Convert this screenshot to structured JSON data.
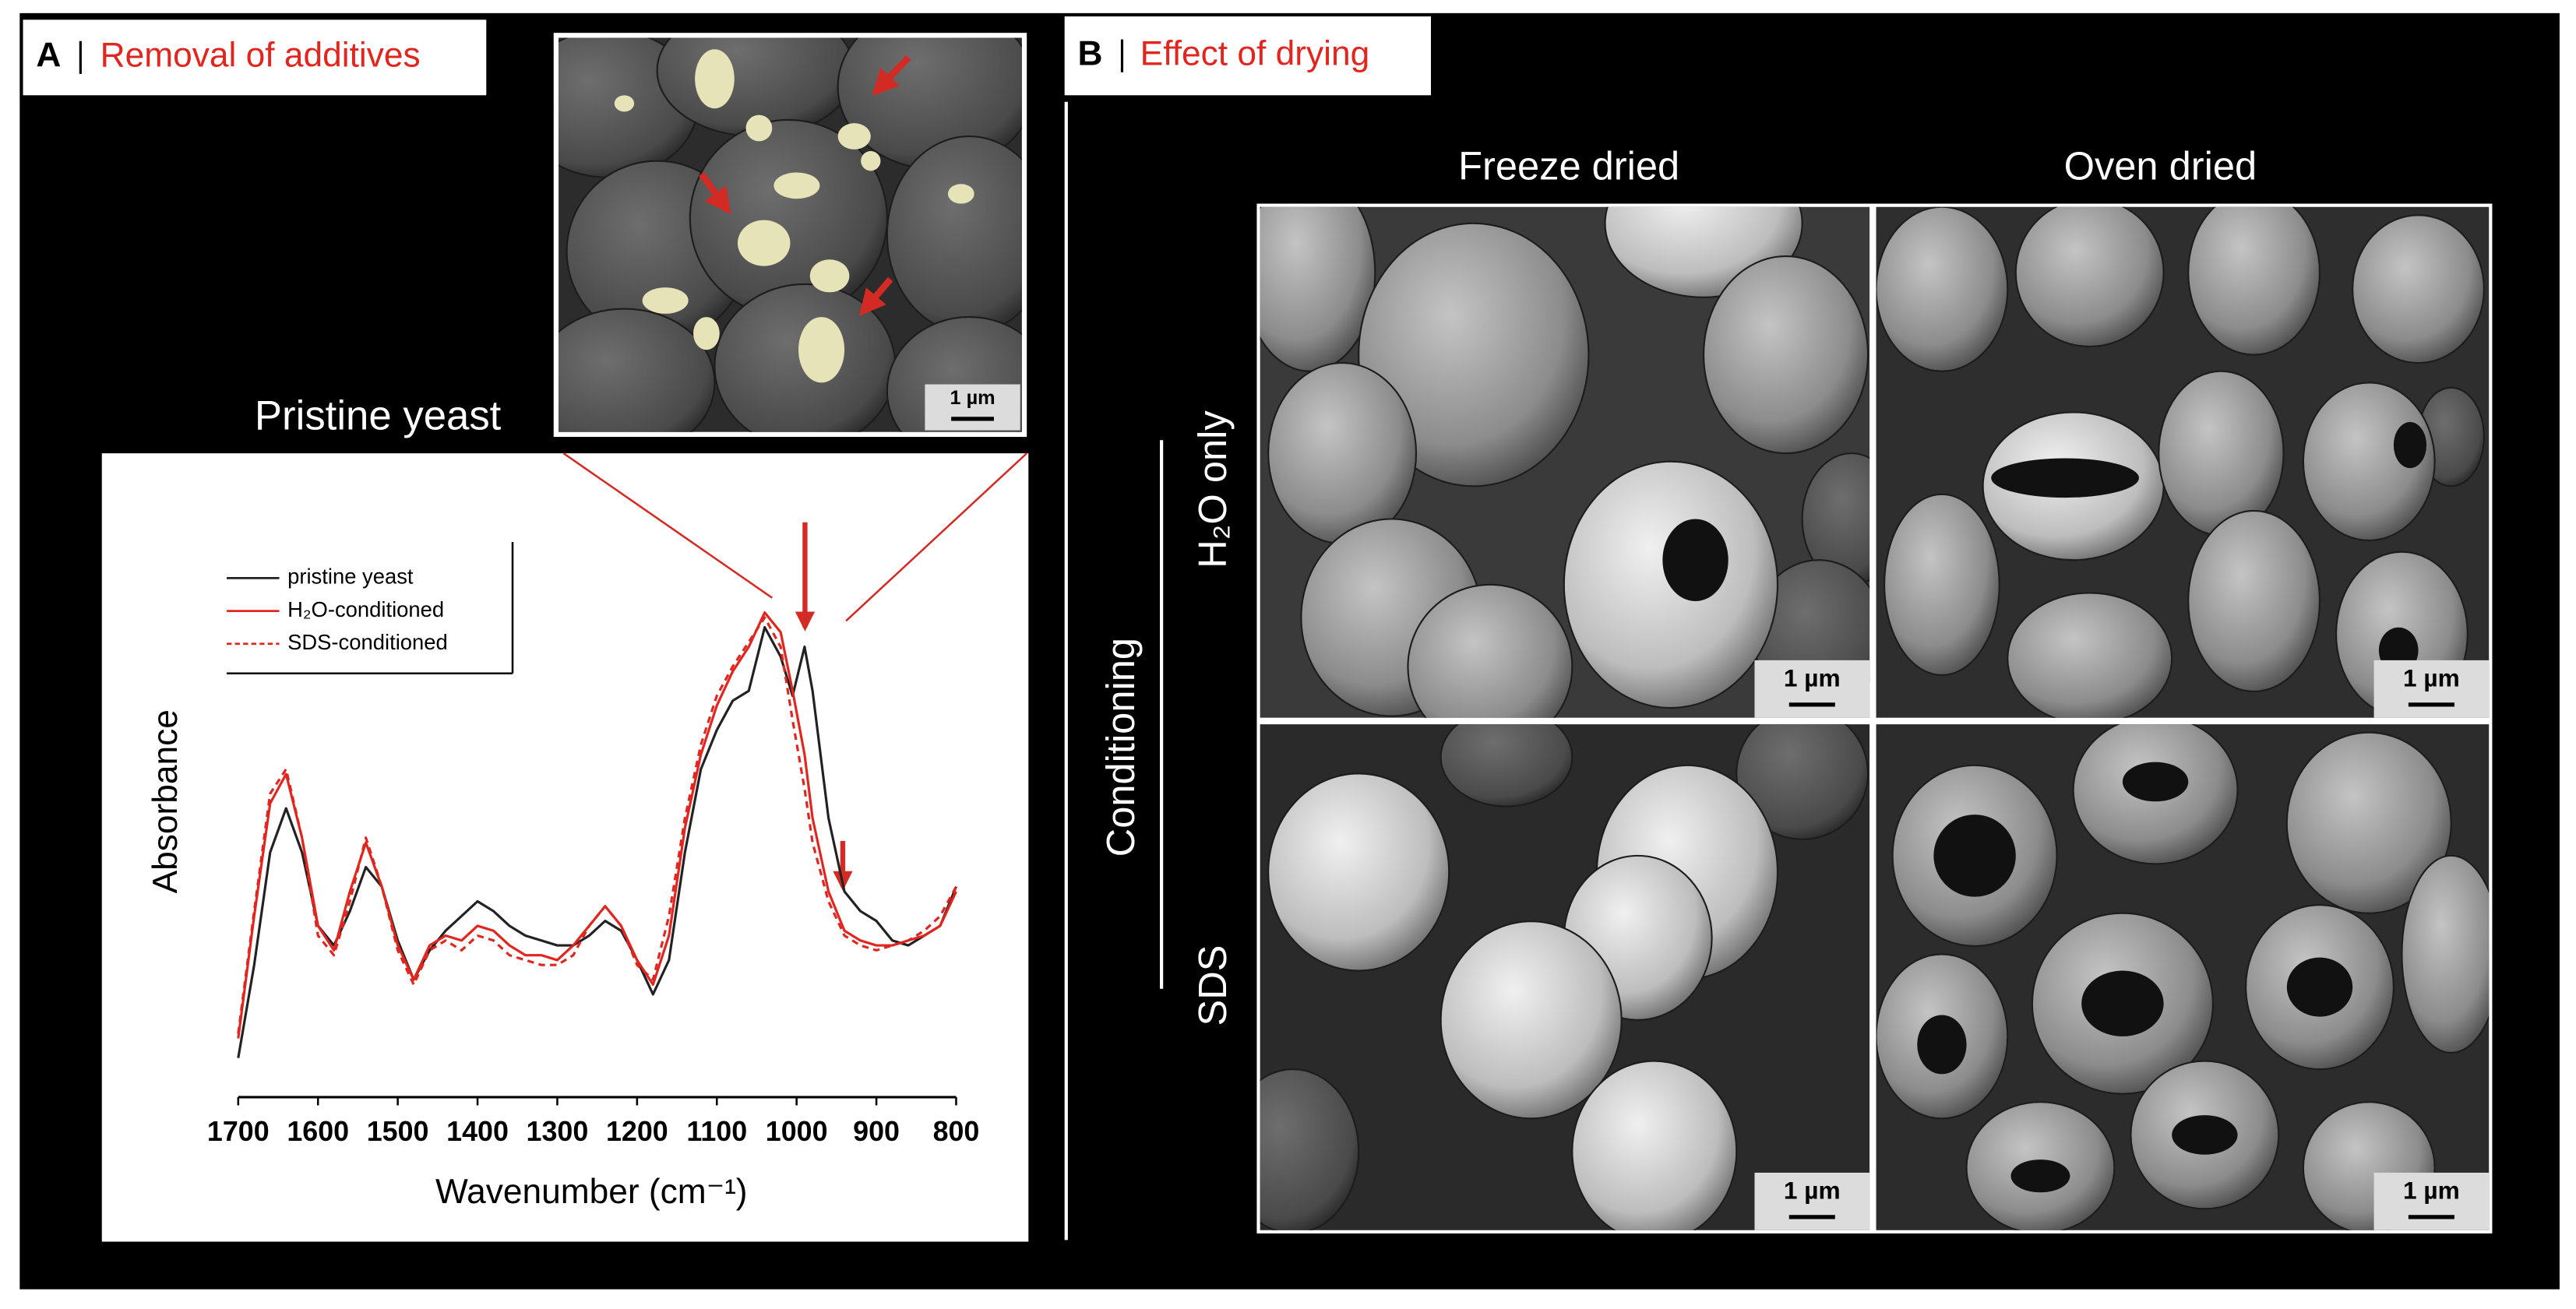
{
  "panel_a": {
    "letter": "A",
    "title": "Removal of additives",
    "inset_label": "Pristine yeast",
    "scale_bar": "1 µm"
  },
  "chart_data": {
    "type": "line",
    "x_label": "Wavenumber (cm⁻¹)",
    "y_label": "Absorbance",
    "x": [
      1700,
      1680,
      1660,
      1640,
      1620,
      1600,
      1580,
      1560,
      1540,
      1520,
      1500,
      1480,
      1460,
      1440,
      1420,
      1400,
      1380,
      1360,
      1340,
      1320,
      1300,
      1280,
      1260,
      1240,
      1220,
      1200,
      1180,
      1160,
      1140,
      1120,
      1100,
      1080,
      1060,
      1040,
      1020,
      1005,
      990,
      980,
      960,
      940,
      920,
      900,
      880,
      860,
      840,
      820,
      800
    ],
    "xlim": [
      1700,
      800
    ],
    "xticks": [
      1700,
      1600,
      1500,
      1400,
      1300,
      1200,
      1100,
      1000,
      900,
      800
    ],
    "ylim": [
      0,
      1
    ],
    "legend": "upper left",
    "series": [
      {
        "name": "pristine yeast",
        "color": "#222222",
        "style": "solid",
        "values": [
          0.08,
          0.27,
          0.5,
          0.59,
          0.5,
          0.35,
          0.31,
          0.38,
          0.47,
          0.43,
          0.32,
          0.24,
          0.3,
          0.34,
          0.37,
          0.4,
          0.38,
          0.35,
          0.33,
          0.32,
          0.31,
          0.31,
          0.33,
          0.36,
          0.34,
          0.28,
          0.21,
          0.28,
          0.5,
          0.67,
          0.75,
          0.81,
          0.83,
          0.96,
          0.9,
          0.82,
          0.92,
          0.83,
          0.57,
          0.42,
          0.38,
          0.36,
          0.32,
          0.31,
          0.33,
          0.35,
          0.43
        ]
      },
      {
        "name": "H₂O-conditioned",
        "color": "#e0261f",
        "style": "solid",
        "values": [
          0.12,
          0.37,
          0.6,
          0.66,
          0.53,
          0.35,
          0.3,
          0.42,
          0.52,
          0.43,
          0.31,
          0.24,
          0.31,
          0.33,
          0.32,
          0.35,
          0.34,
          0.31,
          0.29,
          0.29,
          0.28,
          0.31,
          0.35,
          0.39,
          0.35,
          0.28,
          0.23,
          0.33,
          0.55,
          0.7,
          0.8,
          0.87,
          0.92,
          0.99,
          0.95,
          0.83,
          0.7,
          0.57,
          0.42,
          0.34,
          0.32,
          0.31,
          0.31,
          0.32,
          0.33,
          0.35,
          0.42
        ]
      },
      {
        "name": "SDS-conditioned",
        "color": "#e0261f",
        "style": "dashed",
        "values": [
          0.13,
          0.38,
          0.62,
          0.67,
          0.53,
          0.33,
          0.29,
          0.4,
          0.53,
          0.43,
          0.3,
          0.23,
          0.3,
          0.32,
          0.3,
          0.33,
          0.32,
          0.29,
          0.28,
          0.27,
          0.27,
          0.29,
          0.35,
          0.39,
          0.35,
          0.27,
          0.24,
          0.37,
          0.57,
          0.72,
          0.82,
          0.88,
          0.93,
          0.98,
          0.92,
          0.77,
          0.63,
          0.52,
          0.4,
          0.33,
          0.31,
          0.3,
          0.31,
          0.32,
          0.34,
          0.37,
          0.43
        ]
      }
    ]
  },
  "panel_b": {
    "letter": "B",
    "title": "Effect of drying",
    "columns": [
      "Freeze dried",
      "Oven dried"
    ],
    "group_label": "Conditioning",
    "rows": [
      "H₂O only",
      "SDS"
    ],
    "scale_bars": [
      "1 µm",
      "1 µm",
      "1 µm",
      "1 µm"
    ]
  }
}
